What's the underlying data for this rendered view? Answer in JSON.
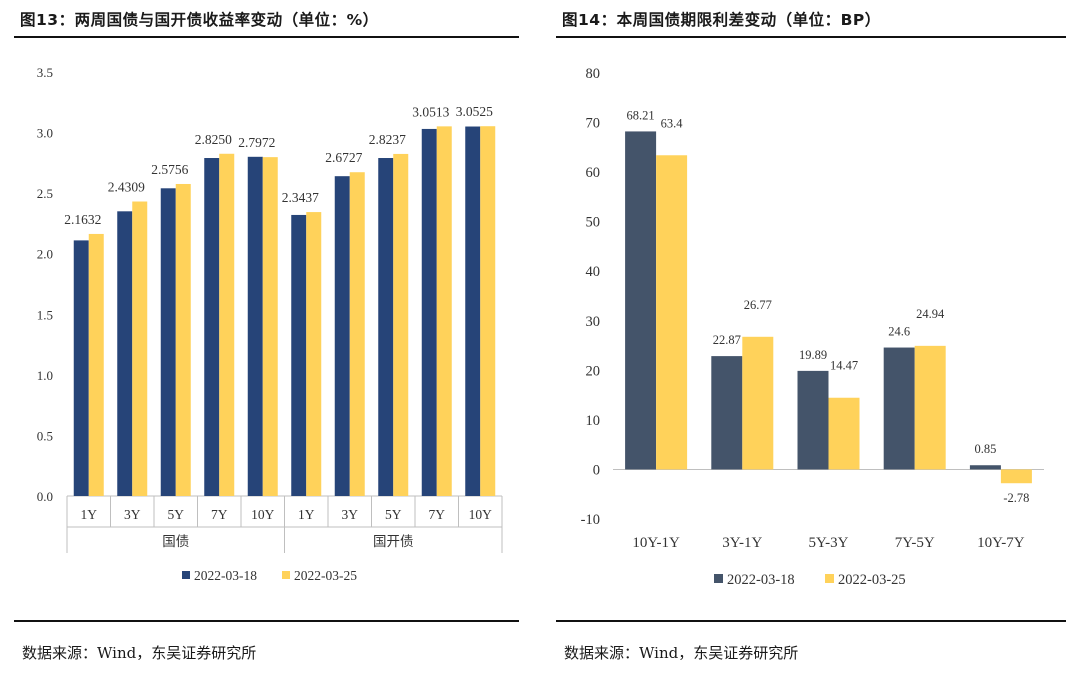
{
  "left_panel": {
    "title": "图13：两周国债与国开债收益率变动（单位：%）",
    "source": "数据来源：Wind，东吴证券研究所"
  },
  "right_panel": {
    "title": "图14：本周国债期限利差变动（单位：BP）",
    "source": "数据来源：Wind，东吴证券研究所"
  },
  "colors": {
    "series1": "#264478",
    "series1_right": "#44546a",
    "series2": "#ffd25a"
  },
  "chart_data": [
    {
      "type": "bar",
      "title": "两周国债与国开债收益率变动",
      "groups": [
        {
          "name": "国债",
          "categories": [
            "1Y",
            "3Y",
            "5Y",
            "7Y",
            "10Y"
          ]
        },
        {
          "name": "国开债",
          "categories": [
            "1Y",
            "3Y",
            "5Y",
            "7Y",
            "10Y"
          ]
        }
      ],
      "series": [
        {
          "name": "2022-03-18",
          "values": [
            2.11,
            2.35,
            2.54,
            2.79,
            2.8,
            2.32,
            2.64,
            2.79,
            3.03,
            3.05
          ],
          "labels": [
            "",
            "",
            "",
            "",
            "",
            "",
            "",
            "",
            "",
            ""
          ]
        },
        {
          "name": "2022-03-25",
          "values": [
            2.1632,
            2.4309,
            2.5756,
            2.825,
            2.7972,
            2.3437,
            2.6727,
            2.8237,
            3.0513,
            3.0525
          ],
          "labels": [
            "2.1632",
            "2.4309",
            "2.5756",
            "2.8250",
            "2.7972",
            "2.3437",
            "2.6727",
            "2.8237",
            "3.0513",
            "3.0525"
          ]
        }
      ],
      "ylim": [
        0,
        3.5
      ],
      "yticks": [
        "0.0",
        "0.5",
        "1.0",
        "1.5",
        "2.0",
        "2.5",
        "3.0",
        "3.5"
      ],
      "legend": "bottom"
    },
    {
      "type": "bar",
      "title": "本周国债期限利差变动",
      "categories": [
        "10Y-1Y",
        "3Y-1Y",
        "5Y-3Y",
        "7Y-5Y",
        "10Y-7Y"
      ],
      "series": [
        {
          "name": "2022-03-18",
          "values": [
            68.21,
            22.87,
            19.89,
            24.6,
            0.85
          ],
          "labels": [
            "68.21",
            "22.87",
            "19.89",
            "24.6",
            "0.85"
          ]
        },
        {
          "name": "2022-03-25",
          "values": [
            63.4,
            26.77,
            14.47,
            24.94,
            -2.78
          ],
          "labels": [
            "63.4",
            "26.77",
            "14.47",
            "24.94",
            "-2.78"
          ]
        }
      ],
      "ylim": [
        -10,
        80
      ],
      "yticks": [
        "-10",
        "0",
        "10",
        "20",
        "30",
        "40",
        "50",
        "60",
        "70",
        "80"
      ],
      "legend": "bottom"
    }
  ]
}
